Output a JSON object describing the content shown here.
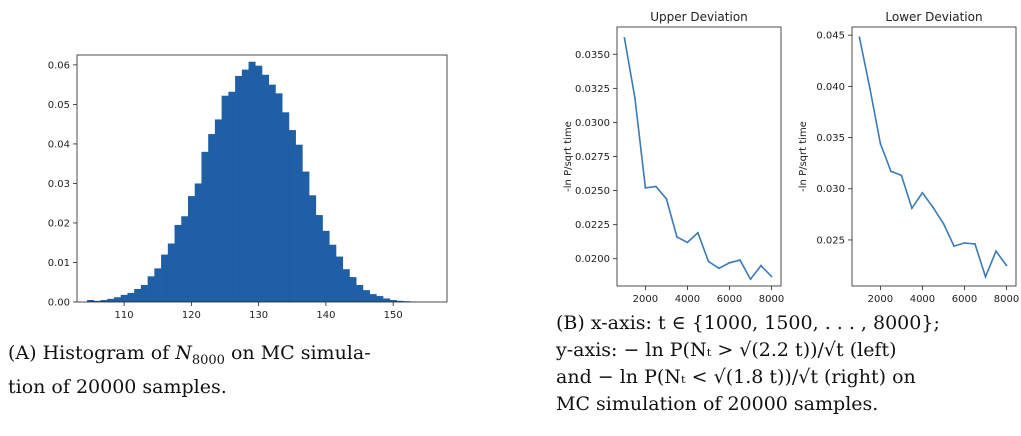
{
  "chart_data": [
    {
      "type": "bar",
      "title": "",
      "xlabel": "",
      "ylabel": "",
      "xlim": [
        103,
        158
      ],
      "ylim": [
        0,
        0.0625
      ],
      "xticks": [
        "110",
        "120",
        "130",
        "140",
        "150"
      ],
      "yticks": [
        "0.00",
        "0.01",
        "0.02",
        "0.03",
        "0.04",
        "0.05",
        "0.06"
      ],
      "bar_color": "#1f5fa5",
      "bins": [
        {
          "x": 105,
          "v": 0.0005
        },
        {
          "x": 106,
          "v": 0.0003
        },
        {
          "x": 107,
          "v": 0.0005
        },
        {
          "x": 108,
          "v": 0.0008
        },
        {
          "x": 109,
          "v": 0.0012
        },
        {
          "x": 110,
          "v": 0.0018
        },
        {
          "x": 111,
          "v": 0.0023
        },
        {
          "x": 112,
          "v": 0.0033
        },
        {
          "x": 113,
          "v": 0.0043
        },
        {
          "x": 114,
          "v": 0.0065
        },
        {
          "x": 115,
          "v": 0.0085
        },
        {
          "x": 116,
          "v": 0.012
        },
        {
          "x": 117,
          "v": 0.0148
        },
        {
          "x": 118,
          "v": 0.0195
        },
        {
          "x": 119,
          "v": 0.0217
        },
        {
          "x": 120,
          "v": 0.0268
        },
        {
          "x": 121,
          "v": 0.03
        },
        {
          "x": 122,
          "v": 0.038
        },
        {
          "x": 123,
          "v": 0.0425
        },
        {
          "x": 124,
          "v": 0.0462
        },
        {
          "x": 125,
          "v": 0.0522
        },
        {
          "x": 126,
          "v": 0.0532
        },
        {
          "x": 127,
          "v": 0.0572
        },
        {
          "x": 128,
          "v": 0.0588
        },
        {
          "x": 129,
          "v": 0.0608
        },
        {
          "x": 130,
          "v": 0.0598
        },
        {
          "x": 131,
          "v": 0.0575
        },
        {
          "x": 132,
          "v": 0.055
        },
        {
          "x": 133,
          "v": 0.0528
        },
        {
          "x": 134,
          "v": 0.048
        },
        {
          "x": 135,
          "v": 0.0435
        },
        {
          "x": 136,
          "v": 0.0398
        },
        {
          "x": 137,
          "v": 0.033
        },
        {
          "x": 138,
          "v": 0.027
        },
        {
          "x": 139,
          "v": 0.022
        },
        {
          "x": 140,
          "v": 0.018
        },
        {
          "x": 141,
          "v": 0.0145
        },
        {
          "x": 142,
          "v": 0.0115
        },
        {
          "x": 143,
          "v": 0.0083
        },
        {
          "x": 144,
          "v": 0.0063
        },
        {
          "x": 145,
          "v": 0.0043
        },
        {
          "x": 146,
          "v": 0.003
        },
        {
          "x": 147,
          "v": 0.002
        },
        {
          "x": 148,
          "v": 0.0015
        },
        {
          "x": 149,
          "v": 0.0009
        },
        {
          "x": 150,
          "v": 0.0005
        },
        {
          "x": 151,
          "v": 0.0003
        },
        {
          "x": 152,
          "v": 0.0002
        },
        {
          "x": 153,
          "v": 0.0001
        }
      ]
    },
    {
      "type": "line",
      "title": "Upper Deviation",
      "ylabel": "-ln P/sqrt time",
      "xlim": [
        650,
        8450
      ],
      "ylim": [
        0.018,
        0.037
      ],
      "xticks": [
        "2000",
        "4000",
        "6000",
        "8000"
      ],
      "yticks": [
        "0.0200",
        "0.0225",
        "0.0250",
        "0.0275",
        "0.0300",
        "0.0325",
        "0.0350"
      ],
      "line_color": "#3a7ab8",
      "x": [
        1000,
        1500,
        2000,
        2500,
        3000,
        3500,
        4000,
        4500,
        5000,
        5500,
        6000,
        6500,
        7000,
        7500,
        8000
      ],
      "y": [
        0.0362,
        0.0318,
        0.0252,
        0.0253,
        0.0244,
        0.0216,
        0.0212,
        0.0219,
        0.0198,
        0.0193,
        0.0197,
        0.0199,
        0.0185,
        0.0195,
        0.0187
      ]
    },
    {
      "type": "line",
      "title": "Lower Deviation",
      "ylabel": "-ln P/sqrt time",
      "xlim": [
        650,
        8450
      ],
      "ylim": [
        0.0205,
        0.0458
      ],
      "xticks": [
        "2000",
        "4000",
        "6000",
        "8000"
      ],
      "yticks": [
        "0.025",
        "0.030",
        "0.035",
        "0.040",
        "0.045"
      ],
      "line_color": "#3a7ab8",
      "x": [
        1000,
        1500,
        2000,
        2500,
        3000,
        3500,
        4000,
        4500,
        5000,
        5500,
        6000,
        6500,
        7000,
        7500,
        8000
      ],
      "y": [
        0.0448,
        0.0398,
        0.0344,
        0.0317,
        0.0313,
        0.0281,
        0.0296,
        0.0282,
        0.0266,
        0.0244,
        0.0247,
        0.0246,
        0.0214,
        0.0239,
        0.0225
      ]
    }
  ],
  "captions": {
    "a": {
      "label": "(A)",
      "text_1": "Histogram of",
      "var": "N",
      "sub": "8000",
      "text_2": "on MC simula-",
      "line2": "tion of 20000 samples."
    },
    "b": {
      "label": "(B)",
      "line1": "x-axis:  t ∈ {1000, 1500, . . . , 8000};",
      "line2": "y-axis:  − ln P(Nₜ > √(2.2 t))/√t (left)",
      "line3": "and − ln P(Nₜ < √(1.8 t))/√t (right) on",
      "line4": "MC simulation of 20000 samples."
    }
  }
}
